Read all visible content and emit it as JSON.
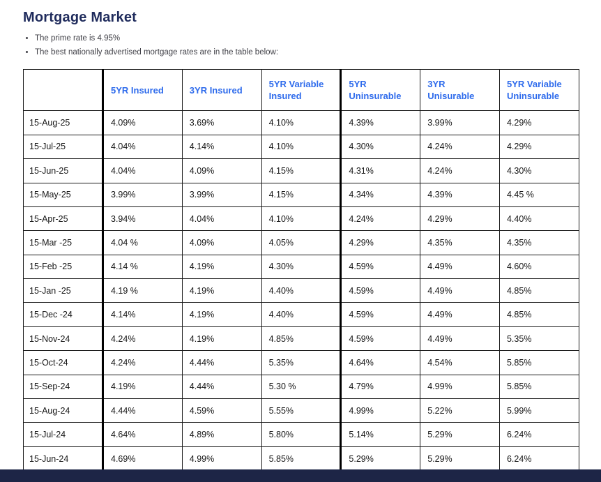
{
  "page": {
    "title": "Mortgage Market",
    "bullets": [
      "The prime rate is 4.95%",
      "The best nationally advertised mortgage rates are in the table below:"
    ]
  },
  "chart_data": {
    "type": "table",
    "columns": [
      "",
      "5YR Insured",
      "3YR Insured",
      "5YR Variable Insured",
      "5YR Uninsurable",
      "3YR Unisurable",
      "5YR Variable Uninsurable"
    ],
    "rows": [
      [
        "15-Aug-25",
        "4.09%",
        "3.69%",
        "4.10%",
        "4.39%",
        "3.99%",
        "4.29%"
      ],
      [
        "15-Jul-25",
        "4.04%",
        "4.14%",
        "4.10%",
        "4.30%",
        "4.24%",
        "4.29%"
      ],
      [
        "15-Jun-25",
        "4.04%",
        "4.09%",
        "4.15%",
        "4.31%",
        "4.24%",
        "4.30%"
      ],
      [
        "15-May-25",
        "3.99%",
        "3.99%",
        "4.15%",
        "4.34%",
        "4.39%",
        "4.45 %"
      ],
      [
        "15-Apr-25",
        "3.94%",
        "4.04%",
        "4.10%",
        "4.24%",
        "4.29%",
        "4.40%"
      ],
      [
        "15-Mar -25",
        "4.04 %",
        "4.09%",
        "4.05%",
        "4.29%",
        "4.35%",
        "4.35%"
      ],
      [
        "15-Feb -25",
        "4.14 %",
        "4.19%",
        "4.30%",
        "4.59%",
        "4.49%",
        "4.60%"
      ],
      [
        "15-Jan -25",
        "4.19 %",
        "4.19%",
        "4.40%",
        "4.59%",
        "4.49%",
        "4.85%"
      ],
      [
        "15-Dec -24",
        "4.14%",
        "4.19%",
        "4.40%",
        "4.59%",
        "4.49%",
        "4.85%"
      ],
      [
        "15-Nov-24",
        "4.24%",
        "4.19%",
        "4.85%",
        "4.59%",
        "4.49%",
        "5.35%"
      ],
      [
        "15-Oct-24",
        "4.24%",
        "4.44%",
        "5.35%",
        "4.64%",
        "4.54%",
        "5.85%"
      ],
      [
        "15-Sep-24",
        "4.19%",
        "4.44%",
        "5.30 %",
        "4.79%",
        "4.99%",
        "5.85%"
      ],
      [
        "15-Aug-24",
        "4.44%",
        "4.59%",
        "5.55%",
        "4.99%",
        "5.22%",
        "5.99%"
      ],
      [
        "15-Jul-24",
        "4.64%",
        "4.89%",
        "5.80%",
        "5.14%",
        "5.29%",
        "6.24%"
      ],
      [
        "15-Jun-24",
        "4.69%",
        "4.99%",
        "5.85%",
        "5.29%",
        "5.29%",
        "6.24%"
      ]
    ]
  },
  "colors": {
    "title_color": "#1f2b5c",
    "header_text": "#2e6bec",
    "footer_bar": "#1d2546",
    "table_border": "#1a1a1a",
    "cell_text": "#161616",
    "bullet_text": "#3f3f46"
  }
}
